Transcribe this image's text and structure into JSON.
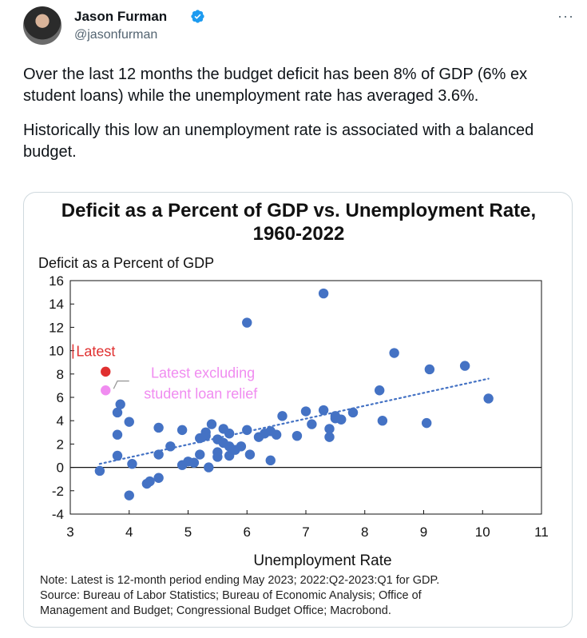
{
  "tweet": {
    "author_name": "Jason Furman",
    "handle": "@jasonfurman",
    "more_icon": "more-icon",
    "verified_icon": "verified-badge-icon",
    "paragraphs": [
      "Over the last 12 months the budget deficit has been 8% of GDP (6% ex student loans) while the unemployment rate has averaged 3.6%.",
      "Historically this low an unemployment rate is associated with a balanced budget."
    ]
  },
  "chart_data": {
    "type": "scatter",
    "title_line1": "Deficit as a Percent of GDP vs. Unemployment Rate,",
    "title_line2": "1960-2022",
    "ylabel": "Deficit as a Percent of GDP",
    "xlabel": "Unemployment Rate",
    "xlim": [
      3,
      11
    ],
    "ylim": [
      -4,
      16
    ],
    "xticks": [
      3,
      4,
      5,
      6,
      7,
      8,
      9,
      10,
      11
    ],
    "yticks": [
      -4,
      -2,
      0,
      2,
      4,
      6,
      8,
      10,
      12,
      14,
      16
    ],
    "colors": {
      "points": "#4472c4",
      "latest": "#e03030",
      "latest_ex": "#f08cf0",
      "trend": "#4472c4"
    },
    "series": [
      {
        "points": [
          [
            3.5,
            -0.3
          ],
          [
            3.8,
            1.0
          ],
          [
            3.8,
            2.8
          ],
          [
            3.8,
            4.7
          ],
          [
            3.85,
            5.4
          ],
          [
            4.0,
            3.9
          ],
          [
            4.0,
            -2.4
          ],
          [
            4.05,
            0.3
          ],
          [
            4.3,
            -1.4
          ],
          [
            4.35,
            -1.2
          ],
          [
            4.5,
            -0.9
          ],
          [
            4.5,
            3.4
          ],
          [
            4.5,
            1.1
          ],
          [
            4.7,
            1.8
          ],
          [
            4.9,
            3.2
          ],
          [
            4.9,
            0.2
          ],
          [
            5.0,
            0.5
          ],
          [
            5.1,
            0.4
          ],
          [
            5.2,
            2.5
          ],
          [
            5.2,
            1.1
          ],
          [
            5.3,
            3.0
          ],
          [
            5.3,
            2.7
          ],
          [
            5.35,
            0.0
          ],
          [
            5.4,
            3.7
          ],
          [
            5.5,
            2.4
          ],
          [
            5.5,
            0.9
          ],
          [
            5.5,
            1.3
          ],
          [
            5.6,
            3.3
          ],
          [
            5.6,
            2.1
          ],
          [
            5.7,
            1.8
          ],
          [
            5.7,
            2.9
          ],
          [
            5.7,
            1.0
          ],
          [
            5.8,
            1.5
          ],
          [
            5.9,
            1.8
          ],
          [
            6.0,
            3.2
          ],
          [
            6.0,
            12.4
          ],
          [
            6.05,
            1.1
          ],
          [
            6.2,
            2.6
          ],
          [
            6.3,
            2.9
          ],
          [
            6.4,
            3.1
          ],
          [
            6.4,
            0.6
          ],
          [
            6.5,
            2.8
          ],
          [
            6.6,
            4.4
          ],
          [
            6.85,
            2.7
          ],
          [
            7.0,
            4.8
          ],
          [
            7.1,
            3.7
          ],
          [
            7.3,
            14.9
          ],
          [
            7.3,
            4.9
          ],
          [
            7.4,
            3.3
          ],
          [
            7.4,
            2.6
          ],
          [
            7.5,
            4.2
          ],
          [
            7.5,
            4.4
          ],
          [
            7.6,
            4.1
          ],
          [
            7.8,
            4.7
          ],
          [
            8.25,
            6.6
          ],
          [
            8.3,
            4.0
          ],
          [
            8.5,
            9.8
          ],
          [
            9.05,
            3.8
          ],
          [
            9.1,
            8.4
          ],
          [
            9.7,
            8.7
          ],
          [
            10.1,
            5.9
          ]
        ]
      }
    ],
    "latest": {
      "label": "Latest",
      "x": 3.6,
      "y": 8.2
    },
    "latest_ex": {
      "label_line1": "Latest excluding",
      "label_line2": "student loan relief",
      "x": 3.6,
      "y": 6.6
    },
    "trend": {
      "x0": 3.5,
      "y0": 0.3,
      "x1": 10.1,
      "y1": 7.6
    },
    "notes": [
      "Note: Latest is 12-month period ending May 2023; 2022:Q2-2023:Q1 for GDP.",
      "Source: Bureau of Labor Statistics; Bureau of Economic Analysis; Office of",
      "Management and Budget; Congressional Budget Office; Macrobond."
    ]
  }
}
